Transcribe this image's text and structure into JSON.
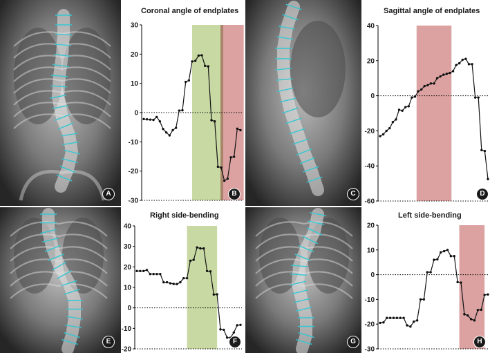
{
  "colors": {
    "green_band": "#c9d9a4",
    "red_band": "#dca2a2",
    "red_band_dark": "#c97878",
    "line": "#111111",
    "spine_marker": "#35c7d2",
    "xray_dark": "#2e2e2e",
    "xray_light": "#d4d4d4"
  },
  "panels": {
    "A": {
      "label": "A",
      "content": "coronal x-ray"
    },
    "B": {
      "label": "B",
      "title": "Coronal angle of endplates"
    },
    "C": {
      "label": "C",
      "content": "sagittal x-ray"
    },
    "D": {
      "label": "D",
      "title": "Sagittal angle of endplates"
    },
    "E": {
      "label": "E",
      "content": "right side-bending x-ray"
    },
    "F": {
      "label": "F",
      "title": "Right side-bending"
    },
    "G": {
      "label": "G",
      "content": "left side-bending x-ray"
    },
    "H": {
      "label": "H",
      "title": "Left side-bending"
    }
  },
  "chart_data": [
    {
      "id": "B",
      "type": "line",
      "title": "Coronal angle of endplates",
      "xlabel": "",
      "ylabel": "",
      "ylim": [
        -30,
        30
      ],
      "yticks": [
        30,
        20,
        10,
        0,
        -10,
        -20,
        -30
      ],
      "zero_line": "dotted",
      "grid": false,
      "bands": [
        {
          "color": "green",
          "x_from": 15,
          "x_to": 24
        },
        {
          "color": "red",
          "x_from": 24,
          "x_to": 31
        }
      ],
      "series": [
        {
          "values": [
            -2.2,
            -2.3,
            -2.4,
            -2.5,
            -1.5,
            -3.0,
            -5.6,
            -6.8,
            -7.8,
            -6.0,
            -5.2,
            0.7,
            0.8,
            10.5,
            11,
            17.5,
            17.7,
            19.5,
            19.6,
            16,
            15.8,
            -2.6,
            -3,
            -18.5,
            -18.8,
            -23.3,
            -22.6,
            -15.3,
            -15.1,
            -5.5,
            -6
          ]
        }
      ]
    },
    {
      "id": "D",
      "type": "line",
      "title": "Sagittal angle of endplates",
      "xlabel": "",
      "ylabel": "",
      "ylim": [
        -60,
        40
      ],
      "yticks": [
        40,
        20,
        0,
        -20,
        -40,
        -60
      ],
      "zero_line": "dotted",
      "grid": false,
      "bands": [
        {
          "color": "red",
          "x_from": 11.5,
          "x_to": 22.5
        }
      ],
      "series": [
        {
          "values": [
            -23,
            -22,
            -20,
            -18.5,
            -15,
            -13.5,
            -8,
            -8.5,
            -6.5,
            -6,
            -1,
            -0.5,
            2.5,
            3.5,
            5.5,
            6,
            7,
            7,
            10,
            11,
            12,
            12.5,
            13,
            14,
            17.5,
            18.5,
            20.5,
            21,
            18,
            18,
            -1,
            -1,
            -31,
            -31.5,
            -47.5
          ]
        }
      ]
    },
    {
      "id": "F",
      "type": "line",
      "title": "Right side-bending",
      "xlabel": "",
      "ylabel": "",
      "ylim": [
        -20,
        40
      ],
      "yticks": [
        40,
        30,
        20,
        10,
        0,
        -10,
        -20
      ],
      "zero_line": "dotted",
      "grid": false,
      "bands": [
        {
          "color": "green",
          "x_from": 15,
          "x_to": 24
        }
      ],
      "series": [
        {
          "values": [
            18,
            18,
            18,
            18.5,
            16.5,
            16.5,
            16.5,
            16.5,
            12.5,
            12.5,
            12,
            11.7,
            11.6,
            12.5,
            14.5,
            14.5,
            23,
            23.5,
            29.5,
            29,
            29,
            18,
            17.8,
            6.5,
            6.6,
            -10.5,
            -10.7,
            -14.5,
            -14.6,
            -12,
            -8.5,
            -8.3
          ]
        }
      ]
    },
    {
      "id": "H",
      "type": "line",
      "title": "Left side-bending",
      "xlabel": "",
      "ylabel": "",
      "ylim": [
        -30,
        20
      ],
      "yticks": [
        20,
        10,
        0,
        -10,
        -20,
        -30
      ],
      "zero_line": "dotted",
      "grid": false,
      "bands": [
        {
          "color": "red",
          "x_from": 23.5,
          "x_to": 31
        }
      ],
      "series": [
        {
          "values": [
            -19.5,
            -19.3,
            -17.5,
            -17.5,
            -17.5,
            -17.5,
            -17.5,
            -17.5,
            -20.5,
            -21,
            -19,
            -18.5,
            -10,
            -10,
            1,
            1,
            6,
            6.2,
            9,
            9.5,
            10,
            7.5,
            7.5,
            -3,
            -3.2,
            -16,
            -16.5,
            -18,
            -18.5,
            -14.3,
            -14.2,
            -8.2,
            -8
          ]
        }
      ]
    }
  ]
}
